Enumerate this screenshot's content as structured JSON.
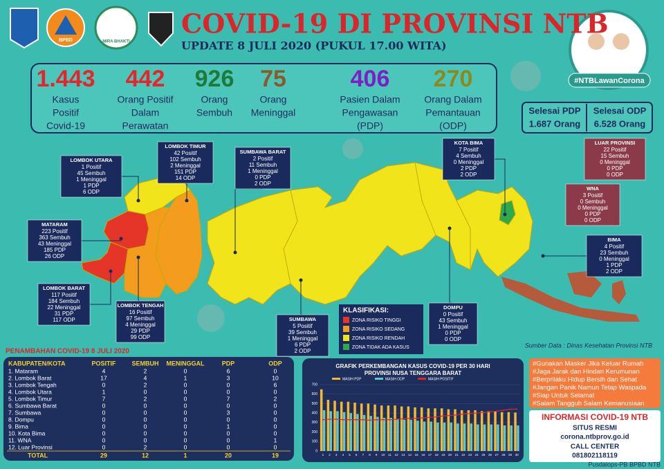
{
  "header": {
    "title": "COVID-19 DI PROVINSI NTB",
    "subtitle": "UPDATE 8 JULI 2020 (PUKUL 17.00 WITA)",
    "hashtag": "#NTBLawanCorona"
  },
  "logos": [
    "BPBD",
    "MIRA BHAKTI"
  ],
  "stats": [
    {
      "value": "1.443",
      "color": "#e3262b",
      "label": [
        "Kasus",
        "Positif",
        "Covid-19"
      ]
    },
    {
      "value": "442",
      "color": "#e3262b",
      "label": [
        "Orang Positif",
        "Dalam",
        "Perawatan"
      ]
    },
    {
      "value": "926",
      "color": "#1f7a3a",
      "label": [
        "Orang",
        "Sembuh"
      ]
    },
    {
      "value": "75",
      "color": "#8a5a2b",
      "label": [
        "Orang",
        "Meninggal"
      ]
    },
    {
      "value": "406",
      "color": "#7d1fc4",
      "label": [
        "Pasien Dalam",
        "Pengawasan",
        "(PDP)"
      ]
    },
    {
      "value": "270",
      "color": "#8b8a1f",
      "label": [
        "Orang Dalam",
        "Pemantauan",
        "(ODP)"
      ]
    }
  ],
  "completed": [
    {
      "label": "Selesai PDP",
      "value": "1.687 Orang"
    },
    {
      "label": "Selesai ODP",
      "value": "6.528 Orang"
    }
  ],
  "regions": [
    {
      "name": "LOMBOK UTARA",
      "color": "#1b2a5c",
      "lines": [
        "1 Positif",
        "45 Sembuh",
        "1 Meninggal",
        "1 PDP",
        "6 ODP"
      ]
    },
    {
      "name": "LOMBOK TIMUR",
      "color": "#1b2a5c",
      "lines": [
        "42 Positif",
        "102 Sembuh",
        "2 Meninggal",
        "151 PDP",
        "14 ODP"
      ]
    },
    {
      "name": "MATARAM",
      "color": "#1b2a5c",
      "lines": [
        "223 Positif",
        "363 Sembuh",
        "43 Meninggal",
        "185 PDP",
        "26 ODP"
      ]
    },
    {
      "name": "LOMBOK BARAT",
      "color": "#1b2a5c",
      "lines": [
        "117 Positif",
        "184 Sembuh",
        "22 Meninggal",
        "31 PDP",
        "117 ODP"
      ]
    },
    {
      "name": "LOMBOK TENGAH",
      "color": "#1b2a5c",
      "lines": [
        "16 Positif",
        "97 Sembuh",
        "4 Meninggal",
        "29 PDP",
        "99 ODP"
      ]
    },
    {
      "name": "SUMBAWA BARAT",
      "color": "#1b2a5c",
      "lines": [
        "2 Positif",
        "11 Sembuh",
        "1 Meninggal",
        "0 PDP",
        "2 ODP"
      ]
    },
    {
      "name": "SUMBAWA",
      "color": "#1b2a5c",
      "lines": [
        "5 Positif",
        "39 Sembuh",
        "1 Meninggal",
        "6 PDP",
        "2 ODP"
      ]
    },
    {
      "name": "KOTA BIMA",
      "color": "#1b2a5c",
      "lines": [
        "7 Positif",
        "4 Sembuh",
        "0 Meninggal",
        "2 PDP",
        "2 ODP"
      ]
    },
    {
      "name": "DOMPU",
      "color": "#1b2a5c",
      "lines": [
        "0 Positif",
        "43 Sembuh",
        "1 Meninggal",
        "0 PDP",
        "0 ODP"
      ]
    },
    {
      "name": "BIMA",
      "color": "#1b2a5c",
      "lines": [
        "4 Positif",
        "23 Sembuh",
        "0 Meninggal",
        "1 PDP",
        "2 ODP"
      ]
    },
    {
      "name": "LUAR PROVINSI",
      "color": "#8b3a4a",
      "lines": [
        "22 Positif",
        "15 Sembuh",
        "0 Meninggal",
        "0 PDP",
        "0 ODP"
      ]
    },
    {
      "name": "WNA",
      "color": "#8b3a4a",
      "lines": [
        "3 Positif",
        "0 Sembuh",
        "0 Meninggal",
        "0 PDP",
        "0 ODP"
      ]
    }
  ],
  "legend": {
    "title": "KLASIFIKASI:",
    "items": [
      {
        "label": "ZONA RISIKO TINGGI",
        "color": "#e53528"
      },
      {
        "label": "ZONA RISIKO SEDANG",
        "color": "#f39c1e"
      },
      {
        "label": "ZONA RISIKO RENDAH",
        "color": "#f1e41b"
      },
      {
        "label": "ZONA TIDAK ADA KASUS",
        "color": "#2eaa4a"
      }
    ]
  },
  "source": "Sumber Data : Dinas Kesehatan Provinsi NTB",
  "table": {
    "title": "PENAMBAHAN COVID-19 8 JULI 2020",
    "header": [
      "KABUPATEN/KOTA",
      "POSITIF",
      "SEMBUH",
      "MENINGGAL",
      "PDP",
      "ODP"
    ],
    "rows": [
      [
        "1. Mataram",
        4,
        2,
        0,
        6,
        0
      ],
      [
        "2. Lombok Barat",
        17,
        4,
        1,
        3,
        10
      ],
      [
        "3. Lombok Tengah",
        0,
        2,
        0,
        0,
        6
      ],
      [
        "4. Lombok Utara",
        1,
        0,
        0,
        0,
        0
      ],
      [
        "5. Lombok Timur",
        7,
        2,
        0,
        7,
        2
      ],
      [
        "6. Sumbawa Barat",
        0,
        0,
        0,
        0,
        0
      ],
      [
        "7. Sumbawa",
        0,
        0,
        0,
        3,
        0
      ],
      [
        "8. Dompu",
        0,
        0,
        0,
        0,
        0
      ],
      [
        "9. Bima",
        0,
        0,
        0,
        1,
        0
      ],
      [
        "10. Kota Bima",
        0,
        0,
        0,
        0,
        0
      ],
      [
        "11. WNA",
        0,
        0,
        0,
        0,
        1
      ],
      [
        "12. Luar Provinsi",
        0,
        2,
        0,
        0,
        0
      ]
    ],
    "total": [
      "TOTAL",
      29,
      12,
      1,
      20,
      19
    ]
  },
  "chart_data": {
    "type": "bar",
    "title": "GRAFIK PERKEMBANGAN KASUS COVID-19 PER 30 HARI",
    "subtitle": "PROVINSI NUSA TENGGARA BARAT",
    "categories": [
      1,
      2,
      3,
      4,
      5,
      6,
      7,
      8,
      9,
      10,
      11,
      12,
      13,
      14,
      15,
      16,
      17,
      18,
      19,
      20,
      21,
      22,
      23,
      24,
      25,
      26,
      27,
      28,
      29,
      30
    ],
    "series": [
      {
        "name": "MASIH PDP",
        "color": "#f5b82e",
        "type": "bar",
        "values": [
          650,
          540,
          530,
          520,
          520,
          510,
          500,
          500,
          490,
          480,
          480,
          480,
          470,
          470,
          460,
          460,
          450,
          450,
          450,
          440,
          440,
          430,
          430,
          430,
          420,
          420,
          420,
          410,
          410,
          406
        ]
      },
      {
        "name": "MASIH ODP",
        "color": "#5ec8d0",
        "type": "bar",
        "values": [
          430,
          420,
          420,
          410,
          400,
          390,
          380,
          370,
          360,
          350,
          350,
          340,
          330,
          330,
          320,
          310,
          310,
          300,
          300,
          300,
          290,
          290,
          290,
          280,
          280,
          280,
          280,
          270,
          270,
          270
        ]
      },
      {
        "name": "MASIH POSITIF",
        "color": "#d9262b",
        "type": "line",
        "values": [
          330,
          335,
          335,
          330,
          330,
          330,
          330,
          325,
          330,
          330,
          330,
          335,
          340,
          345,
          345,
          350,
          355,
          360,
          370,
          375,
          380,
          390,
          395,
          400,
          405,
          415,
          420,
          430,
          440,
          442
        ]
      }
    ],
    "ylim": [
      0,
      700
    ],
    "yticks": [
      0,
      100,
      200,
      300,
      400,
      500,
      600,
      700
    ],
    "grid": true
  },
  "tips": [
    "#Gunakan Masker Jika Keluar Rumah",
    "#Jaga Jarak dan Hindari Kerumunan",
    "#Berprilaku Hidup Bersih dan Sehat",
    "#Jangan Panik Namun Tetap Waspada",
    "#Siap Untuk Selamat",
    "#Salam Tangguh Salam Kemanusiaan"
  ],
  "info": {
    "title": "INFORMASI COVID-19 NTB",
    "site_label": "SITUS RESMI",
    "site": "corona.ntbprov.go.id",
    "call_label": "CALL CENTER",
    "phone": "081802118119"
  },
  "footer": "Pusdalops-PB BPBD NTB"
}
